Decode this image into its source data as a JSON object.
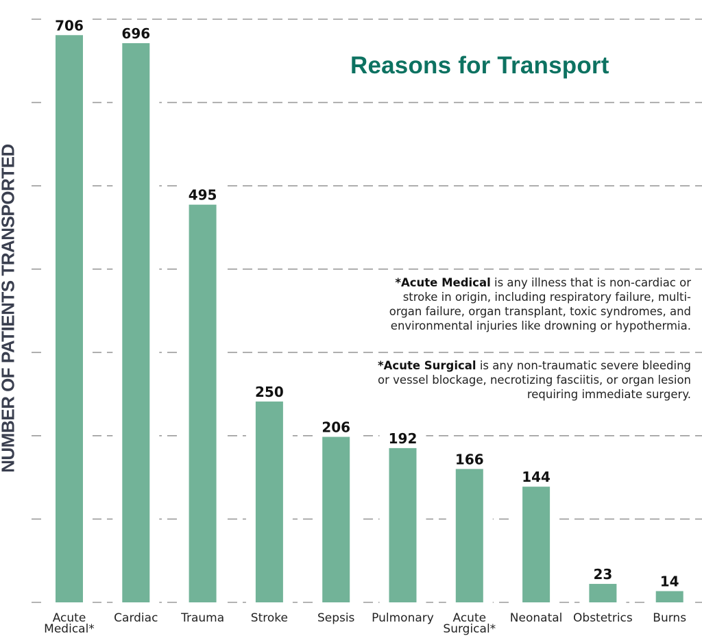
{
  "chart_data": {
    "type": "bar",
    "title": "Reasons for Transport",
    "xlabel": "",
    "ylabel": "NUMBER OF PATIENTS TRANSPORTED",
    "categories": [
      "Acute Medical*",
      "Cardiac",
      "Trauma",
      "Stroke",
      "Sepsis",
      "Pulmonary",
      "Acute Surgical*",
      "Neonatal",
      "Obstetrics",
      "Burns"
    ],
    "category_lines": [
      [
        "Acute",
        "Medical*"
      ],
      [
        "Cardiac"
      ],
      [
        "Trauma"
      ],
      [
        "Stroke"
      ],
      [
        "Sepsis"
      ],
      [
        "Pulmonary"
      ],
      [
        "Acute",
        "Surgical*"
      ],
      [
        "Neonatal"
      ],
      [
        "Obstetrics"
      ],
      [
        "Burns"
      ]
    ],
    "values": [
      706,
      696,
      495,
      250,
      206,
      192,
      166,
      144,
      23,
      14
    ],
    "data_labels": [
      "706",
      "696",
      "495",
      "250",
      "206",
      "192",
      "166",
      "144",
      "23",
      "14"
    ],
    "ylim": [
      0,
      725
    ],
    "gridlines": [
      0,
      100,
      200,
      300,
      400,
      500,
      600,
      700
    ],
    "grid": true,
    "grid_style": "dashed",
    "y_tick_labels_shown": false,
    "legend": "none",
    "bar_color": "#72b398",
    "title_color": "#0d7261",
    "annotations": [
      {
        "bold": "*Acute Medical",
        "text": " is any illness that is non-cardiac or stroke in origin, including respiratory failure, multi-organ failure, organ transplant, toxic syndromes, and environmental injuries like drowning or hypothermia."
      },
      {
        "bold": "*Acute Surgical",
        "text": " is any non-traumatic severe bleeding or vessel blockage, necrotizing fasciitis, or organ lesion requiring immediate surgery."
      }
    ]
  }
}
